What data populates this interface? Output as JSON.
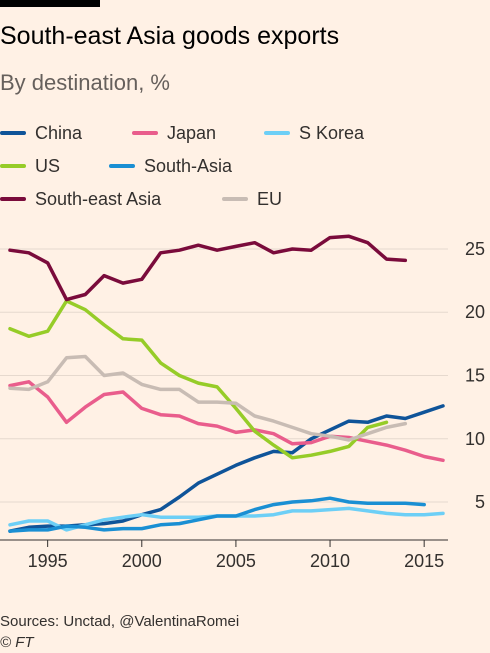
{
  "header": {
    "title": "South-east Asia goods exports",
    "subtitle": "By destination, %"
  },
  "footer": {
    "source": "Sources: Unctad, @ValentinaRomei",
    "copyright": "© FT"
  },
  "chart_data": {
    "type": "line",
    "title": "South-east Asia goods exports",
    "subtitle": "By destination, %",
    "xlabel": "",
    "ylabel": "",
    "xlim": [
      1993,
      2016
    ],
    "ylim": [
      2,
      26.5
    ],
    "x_ticks": [
      1995,
      2000,
      2005,
      2010,
      2015
    ],
    "y_ticks": [
      5,
      10,
      15,
      20,
      25
    ],
    "y_axis_side": "right",
    "grid": "horizontal",
    "legend_position": "top",
    "x": [
      1993,
      1994,
      1995,
      1996,
      1997,
      1998,
      1999,
      2000,
      2001,
      2002,
      2003,
      2004,
      2005,
      2006,
      2007,
      2008,
      2009,
      2010,
      2011,
      2012,
      2013,
      2014,
      2015,
      2016
    ],
    "series": [
      {
        "name": "China",
        "color": "#0f5499",
        "values": [
          2.7,
          3.0,
          3.1,
          3.1,
          3.2,
          3.3,
          3.5,
          4.0,
          4.4,
          5.4,
          6.5,
          7.2,
          7.9,
          8.5,
          9.0,
          8.9,
          10.0,
          10.7,
          11.4,
          11.3,
          11.8,
          11.6,
          12.1,
          12.6
        ]
      },
      {
        "name": "Japan",
        "color": "#e95d8c",
        "values": [
          14.2,
          14.5,
          13.3,
          11.3,
          12.5,
          13.5,
          13.7,
          12.4,
          11.9,
          11.8,
          11.2,
          11.0,
          10.5,
          10.7,
          10.4,
          9.6,
          9.7,
          10.2,
          10.1,
          9.8,
          9.5,
          9.1,
          8.6,
          8.3
        ]
      },
      {
        "name": "S Korea",
        "color": "#6dcff6",
        "values": [
          3.2,
          3.5,
          3.5,
          2.8,
          3.2,
          3.6,
          3.8,
          4.0,
          3.8,
          3.8,
          3.8,
          3.9,
          3.9,
          3.9,
          4.0,
          4.3,
          4.3,
          4.4,
          4.5,
          4.3,
          4.1,
          4.0,
          4.0,
          4.1
        ]
      },
      {
        "name": "US",
        "color": "#96cc28",
        "values": [
          18.7,
          18.1,
          18.5,
          20.9,
          20.2,
          19.0,
          17.9,
          17.8,
          16.0,
          15.0,
          14.4,
          14.1,
          12.4,
          10.6,
          9.5,
          8.5,
          8.7,
          9.0,
          9.4,
          10.9,
          11.3,
          null,
          null,
          null
        ]
      },
      {
        "name": "South-Asia",
        "color": "#1a8fd3",
        "values": [
          2.7,
          2.8,
          2.8,
          3.1,
          3.0,
          2.8,
          2.9,
          2.9,
          3.2,
          3.3,
          3.6,
          3.9,
          3.9,
          4.4,
          4.8,
          5.0,
          5.1,
          5.3,
          5.0,
          4.9,
          4.9,
          4.9,
          4.8,
          null
        ]
      },
      {
        "name": "South-east Asia",
        "color": "#7a0b3b",
        "values": [
          24.9,
          24.7,
          23.9,
          21.0,
          21.4,
          22.9,
          22.3,
          22.6,
          24.7,
          24.9,
          25.3,
          24.9,
          25.2,
          25.5,
          24.7,
          25.0,
          24.9,
          25.9,
          26.0,
          25.5,
          24.2,
          24.1,
          null,
          null
        ]
      },
      {
        "name": "EU",
        "color": "#c8bcb4",
        "values": [
          14.0,
          13.9,
          14.5,
          16.4,
          16.5,
          15.0,
          15.2,
          14.3,
          13.9,
          13.9,
          12.9,
          12.9,
          12.8,
          11.8,
          11.4,
          10.9,
          10.4,
          10.2,
          9.9,
          10.4,
          10.9,
          11.2,
          null,
          null
        ]
      }
    ]
  }
}
